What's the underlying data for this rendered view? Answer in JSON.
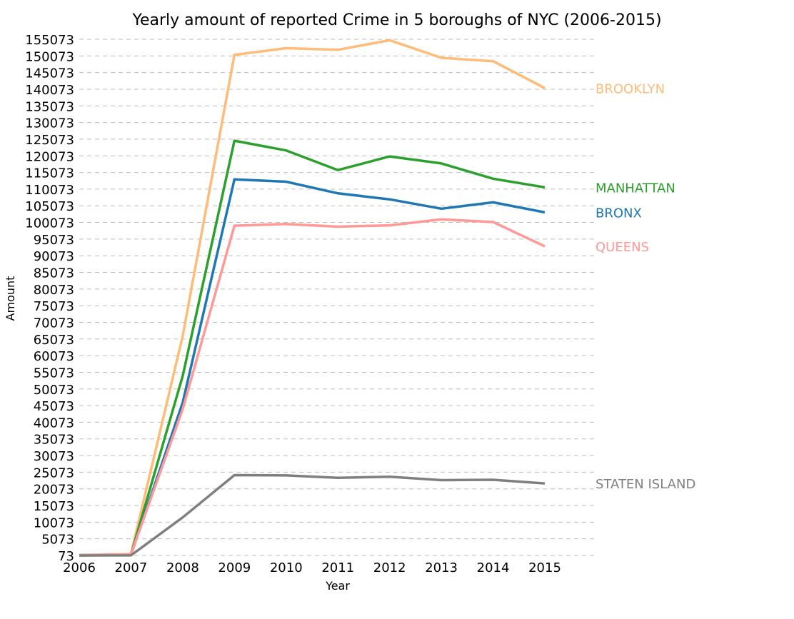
{
  "chart_data": {
    "type": "line",
    "title": "Yearly amount of reported Crime in 5 boroughs of NYC (2006-2015)",
    "xlabel": "Year",
    "ylabel": "Amount",
    "x": [
      2006,
      2007,
      2008,
      2009,
      2010,
      2011,
      2012,
      2013,
      2014,
      2015
    ],
    "x_tick_labels": [
      "2006",
      "2007",
      "2008",
      "2009",
      "2010",
      "2011",
      "2012",
      "2013",
      "2014",
      "2015"
    ],
    "y_ticks": [
      73,
      5073,
      10073,
      15073,
      20073,
      25073,
      30073,
      35073,
      40073,
      45073,
      50073,
      55073,
      60073,
      65073,
      70073,
      75073,
      80073,
      85073,
      90073,
      95073,
      100073,
      105073,
      110073,
      115073,
      120073,
      125073,
      130073,
      135073,
      140073,
      145073,
      150073,
      155073
    ],
    "y_tick_labels": [
      "73",
      "5073",
      "10073",
      "15073",
      "20073",
      "25073",
      "30073",
      "35073",
      "40073",
      "45073",
      "50073",
      "55073",
      "60073",
      "65073",
      "70073",
      "75073",
      "80073",
      "85073",
      "90073",
      "95073",
      "100073",
      "105073",
      "110073",
      "115073",
      "120073",
      "125073",
      "130073",
      "135073",
      "140073",
      "145073",
      "150073",
      "155073"
    ],
    "ylim": [
      73,
      155073
    ],
    "grid": "horizontal dashed",
    "legend": "series labels at right of lines",
    "series": [
      {
        "name": "BROOKLYN",
        "color": "#ffbb78",
        "values": [
          200,
          500,
          66000,
          150400,
          152400,
          151900,
          154800,
          149500,
          148500,
          140400
        ]
      },
      {
        "name": "MANHATTAN",
        "color": "#2ca02c",
        "values": [
          150,
          300,
          54000,
          124600,
          121700,
          115800,
          119900,
          117800,
          113200,
          110600
        ]
      },
      {
        "name": "BRONX",
        "color": "#1f77b4",
        "values": [
          100,
          250,
          46000,
          113000,
          112300,
          108800,
          107000,
          104200,
          106100,
          103100
        ]
      },
      {
        "name": "QUEENS",
        "color": "#ff9896",
        "values": [
          150,
          400,
          44000,
          99100,
          99600,
          98800,
          99200,
          101000,
          100200,
          92900
        ]
      },
      {
        "name": "STATEN ISLAND",
        "color": "#7f7f7f",
        "values": [
          50,
          100,
          11500,
          24200,
          24100,
          23400,
          23700,
          22700,
          22800,
          21700
        ]
      }
    ]
  }
}
